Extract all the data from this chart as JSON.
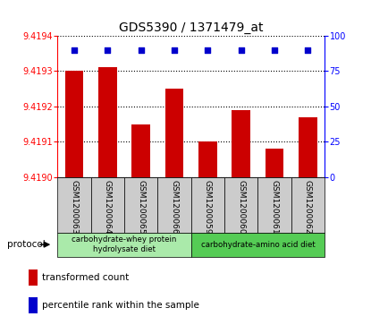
{
  "title": "GDS5390 / 1371479_at",
  "samples": [
    "GSM1200063",
    "GSM1200064",
    "GSM1200065",
    "GSM1200066",
    "GSM1200059",
    "GSM1200060",
    "GSM1200061",
    "GSM1200062"
  ],
  "bar_values": [
    9.4193,
    9.41931,
    9.41915,
    9.41925,
    9.4191,
    9.41919,
    9.41908,
    9.41917
  ],
  "percentile_values": [
    90,
    90,
    90,
    90,
    90,
    90,
    90,
    90
  ],
  "ylim_left": [
    9.419,
    9.4194
  ],
  "ylim_right": [
    0,
    100
  ],
  "yticks_left": [
    9.419,
    9.4191,
    9.4192,
    9.4193,
    9.4194
  ],
  "yticks_right": [
    0,
    25,
    50,
    75,
    100
  ],
  "bar_color": "#cc0000",
  "dot_color": "#0000cc",
  "group1_label": "carbohydrate-whey protein\nhydrolysate diet",
  "group2_label": "carbohydrate-amino acid diet",
  "group1_color": "#aaeaaa",
  "group2_color": "#55cc55",
  "protocol_label": "protocol",
  "legend_bar_label": "transformed count",
  "legend_dot_label": "percentile rank within the sample",
  "bar_width": 0.55,
  "background_color": "#ffffff",
  "xtick_area_color": "#cccccc",
  "base_value": 9.419
}
